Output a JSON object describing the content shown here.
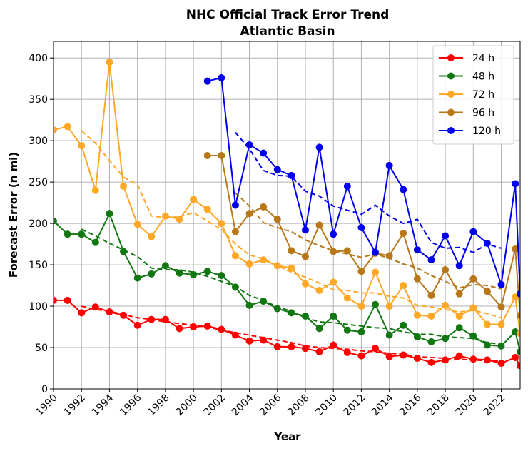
{
  "chart_data": {
    "type": "line",
    "title": "NHC Official Track Error Trend",
    "subtitle": "Atlantic Basin",
    "xlabel": "Year",
    "ylabel": "Forecast Error (n mi)",
    "xlim": [
      1990,
      2023
    ],
    "ylim": [
      0,
      420
    ],
    "xticks": [
      "1990",
      "1992",
      "1994",
      "1996",
      "1998",
      "2000",
      "2002",
      "2004",
      "2006",
      "2008",
      "2010",
      "2012",
      "2014",
      "2016",
      "2018",
      "2020",
      "2022"
    ],
    "yticks": [
      "0",
      "50",
      "100",
      "150",
      "200",
      "250",
      "300",
      "350",
      "400"
    ],
    "grid": true,
    "legend_position": "top-right",
    "series": [
      {
        "name": "24 h",
        "color": "#ff0000",
        "x": [
          1990,
          1991,
          1992,
          1993,
          1994,
          1995,
          1996,
          1997,
          1998,
          1999,
          2000,
          2001,
          2002,
          2003,
          2004,
          2005,
          2006,
          2007,
          2008,
          2009,
          2010,
          2011,
          2012,
          2013,
          2014,
          2015,
          2016,
          2017,
          2018,
          2019,
          2020,
          2021,
          2022,
          2023
        ],
        "values": [
          107,
          107,
          92,
          99,
          93,
          89,
          77,
          84,
          84,
          73,
          75,
          76,
          72,
          65,
          58,
          59,
          51,
          51,
          49,
          45,
          53,
          44,
          40,
          49,
          39,
          41,
          37,
          32,
          35,
          40,
          36,
          35,
          31,
          38
        ],
        "trend_x": [
          1992,
          1993,
          1994,
          1995,
          1996,
          1997,
          1998,
          1999,
          2000,
          2001,
          2002,
          2003,
          2004,
          2005,
          2006,
          2007,
          2008,
          2009,
          2010,
          2011,
          2012,
          2013,
          2014,
          2015,
          2016,
          2017,
          2018,
          2019,
          2020,
          2021,
          2022
        ],
        "trend": [
          100,
          96,
          94,
          90,
          86,
          84,
          81,
          79,
          77,
          75,
          71,
          68,
          65,
          62,
          59,
          56,
          52,
          50,
          49,
          48,
          46,
          45,
          43,
          42,
          39,
          38,
          37,
          36,
          35,
          34,
          34
        ]
      },
      {
        "name": "48 h",
        "color": "#117711",
        "x": [
          1990,
          1991,
          1992,
          1993,
          1994,
          1995,
          1996,
          1997,
          1998,
          1999,
          2000,
          2001,
          2002,
          2003,
          2004,
          2005,
          2006,
          2007,
          2008,
          2009,
          2010,
          2011,
          2012,
          2013,
          2014,
          2015,
          2016,
          2017,
          2018,
          2019,
          2020,
          2021,
          2022,
          2023
        ],
        "values": [
          203,
          187,
          187,
          177,
          212,
          166,
          134,
          139,
          149,
          140,
          138,
          142,
          137,
          123,
          101,
          106,
          97,
          92,
          88,
          73,
          88,
          71,
          69,
          102,
          65,
          77,
          63,
          57,
          61,
          74,
          64,
          53,
          52,
          69
        ],
        "trend_x": [
          1992,
          1993,
          1994,
          1995,
          1996,
          1997,
          1998,
          1999,
          2000,
          2001,
          2002,
          2003,
          2004,
          2005,
          2006,
          2007,
          2008,
          2009,
          2010,
          2011,
          2012,
          2013,
          2014,
          2015,
          2016,
          2017,
          2018,
          2019,
          2020,
          2021,
          2022
        ],
        "trend": [
          193,
          185,
          176,
          168,
          160,
          146,
          144,
          144,
          141,
          136,
          130,
          124,
          113,
          107,
          99,
          94,
          86,
          81,
          80,
          78,
          76,
          74,
          73,
          69,
          66,
          66,
          63,
          62,
          61,
          56,
          54
        ]
      },
      {
        "name": "72 h",
        "color": "#ffa726",
        "x": [
          1990,
          1991,
          1992,
          1993,
          1994,
          1995,
          1996,
          1997,
          1998,
          1999,
          2000,
          2001,
          2002,
          2003,
          2004,
          2005,
          2006,
          2007,
          2008,
          2009,
          2010,
          2011,
          2012,
          2013,
          2014,
          2015,
          2016,
          2017,
          2018,
          2019,
          2020,
          2021,
          2022,
          2023
        ],
        "values": [
          313,
          317,
          294,
          240,
          395,
          245,
          199,
          184,
          209,
          205,
          229,
          217,
          200,
          161,
          151,
          156,
          149,
          146,
          127,
          119,
          129,
          110,
          100,
          141,
          100,
          125,
          89,
          88,
          101,
          88,
          98,
          78,
          78,
          111
        ],
        "trend_x": [
          1992,
          1993,
          1994,
          1995,
          1996,
          1997,
          1998,
          1999,
          2000,
          2001,
          2002,
          2003,
          2004,
          2005,
          2006,
          2007,
          2008,
          2009,
          2010,
          2011,
          2012,
          2013,
          2014,
          2015,
          2016,
          2017,
          2018,
          2019,
          2020,
          2021,
          2022
        ],
        "trend": [
          312,
          297,
          276,
          256,
          247,
          209,
          207,
          208,
          213,
          203,
          193,
          175,
          162,
          157,
          149,
          141,
          135,
          128,
          120,
          119,
          116,
          116,
          112,
          110,
          101,
          99,
          96,
          93,
          95,
          91,
          86
        ]
      },
      {
        "name": "96 h",
        "color": "#b87718",
        "x": [
          2001,
          2002,
          2003,
          2004,
          2005,
          2006,
          2007,
          2008,
          2009,
          2010,
          2011,
          2012,
          2013,
          2014,
          2015,
          2016,
          2017,
          2018,
          2019,
          2020,
          2021,
          2022,
          2023
        ],
        "values": [
          282,
          282,
          190,
          212,
          220,
          205,
          167,
          160,
          198,
          166,
          167,
          142,
          164,
          161,
          188,
          133,
          113,
          144,
          115,
          133,
          118,
          99,
          169
        ],
        "trend_x": [
          2003,
          2004,
          2005,
          2006,
          2007,
          2008,
          2009,
          2010,
          2011,
          2012,
          2013,
          2014,
          2015,
          2016,
          2017,
          2018,
          2019,
          2020,
          2021,
          2022
        ],
        "trend": [
          237,
          221,
          201,
          195,
          190,
          180,
          173,
          167,
          163,
          159,
          163,
          158,
          151,
          146,
          137,
          130,
          122,
          126,
          125,
          121
        ]
      },
      {
        "name": "120 h",
        "color": "#0000ee",
        "x": [
          2001,
          2002,
          2003,
          2004,
          2005,
          2006,
          2007,
          2008,
          2009,
          2010,
          2011,
          2012,
          2013,
          2014,
          2015,
          2016,
          2017,
          2018,
          2019,
          2020,
          2021,
          2022,
          2023
        ],
        "values": [
          372,
          376,
          222,
          295,
          285,
          265,
          258,
          192,
          292,
          187,
          245,
          195,
          165,
          270,
          241,
          168,
          156,
          185,
          149,
          190,
          176,
          126,
          248
        ],
        "trend_x": [
          2003,
          2004,
          2005,
          2006,
          2007,
          2008,
          2009,
          2010,
          2011,
          2012,
          2013,
          2014,
          2015,
          2016,
          2017,
          2018,
          2019,
          2020,
          2021,
          2022
        ],
        "trend": [
          310,
          290,
          264,
          258,
          257,
          239,
          233,
          221,
          216,
          211,
          222,
          209,
          200,
          205,
          177,
          170,
          171,
          165,
          175,
          170
        ]
      }
    ],
    "tail": {
      "x": [
        2023,
        2023.35
      ],
      "values": {
        "24 h": [
          38,
          28
        ],
        "48 h": [
          69,
          45
        ],
        "72 h": [
          111,
          67
        ],
        "96 h": [
          169,
          89
        ],
        "120 h": [
          248,
          115
        ]
      }
    }
  }
}
